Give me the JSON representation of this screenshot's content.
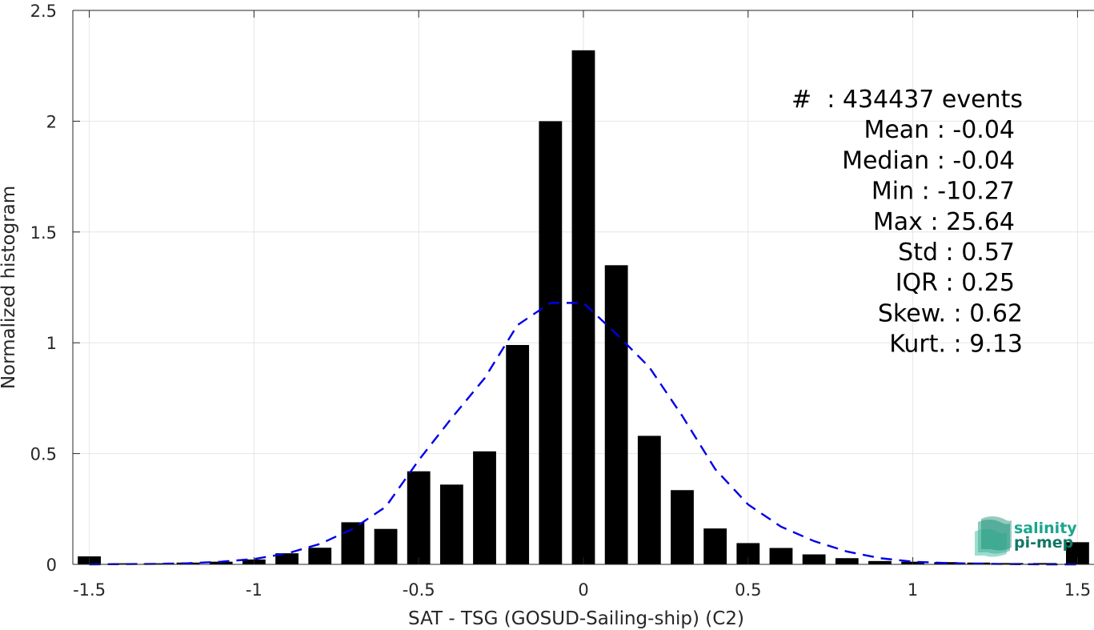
{
  "chart_data": {
    "type": "bar",
    "xlabel": "SAT - TSG (GOSUD-Sailing-ship) (C2)",
    "ylabel": "Normalized histogram",
    "xlim": [
      -1.55,
      1.55
    ],
    "ylim": [
      0,
      2.5
    ],
    "xticks": [
      -1.5,
      -1,
      -0.5,
      0,
      0.5,
      1,
      1.5
    ],
    "xtick_labels": [
      "-1.5",
      "-1",
      "-0.5",
      "0",
      "0.5",
      "1",
      "1.5"
    ],
    "yticks": [
      0,
      0.5,
      1,
      1.5,
      2,
      2.5
    ],
    "ytick_labels": [
      "0",
      "0.5",
      "1",
      "1.5",
      "2",
      "2.5"
    ],
    "grid": true,
    "bar_width": 0.07,
    "bars": [
      {
        "x": -1.5,
        "y": 0.036
      },
      {
        "x": -1.4,
        "y": 0.005
      },
      {
        "x": -1.3,
        "y": 0.005
      },
      {
        "x": -1.2,
        "y": 0.008
      },
      {
        "x": -1.1,
        "y": 0.012
      },
      {
        "x": -1.0,
        "y": 0.022
      },
      {
        "x": -0.9,
        "y": 0.05
      },
      {
        "x": -0.8,
        "y": 0.075
      },
      {
        "x": -0.7,
        "y": 0.19
      },
      {
        "x": -0.6,
        "y": 0.16
      },
      {
        "x": -0.5,
        "y": 0.42
      },
      {
        "x": -0.4,
        "y": 0.36
      },
      {
        "x": -0.3,
        "y": 0.51
      },
      {
        "x": -0.2,
        "y": 0.99
      },
      {
        "x": -0.1,
        "y": 2.0
      },
      {
        "x": 0.0,
        "y": 2.32
      },
      {
        "x": 0.1,
        "y": 1.35
      },
      {
        "x": 0.2,
        "y": 0.58
      },
      {
        "x": 0.3,
        "y": 0.335
      },
      {
        "x": 0.4,
        "y": 0.162
      },
      {
        "x": 0.5,
        "y": 0.096
      },
      {
        "x": 0.6,
        "y": 0.074
      },
      {
        "x": 0.7,
        "y": 0.045
      },
      {
        "x": 0.8,
        "y": 0.028
      },
      {
        "x": 0.9,
        "y": 0.015
      },
      {
        "x": 1.0,
        "y": 0.012
      },
      {
        "x": 1.1,
        "y": 0.01
      },
      {
        "x": 1.2,
        "y": 0.008
      },
      {
        "x": 1.3,
        "y": 0.006
      },
      {
        "x": 1.4,
        "y": 0.006
      },
      {
        "x": 1.5,
        "y": 0.1
      }
    ],
    "fit_curve": {
      "style": "dashed",
      "color": "#0000e6",
      "points": [
        [
          -1.5,
          0.0
        ],
        [
          -1.4,
          0.001
        ],
        [
          -1.3,
          0.002
        ],
        [
          -1.2,
          0.005
        ],
        [
          -1.1,
          0.012
        ],
        [
          -1.0,
          0.024
        ],
        [
          -0.9,
          0.049
        ],
        [
          -0.8,
          0.092
        ],
        [
          -0.7,
          0.16
        ],
        [
          -0.6,
          0.26
        ],
        [
          -0.5,
          0.47
        ],
        [
          -0.4,
          0.66
        ],
        [
          -0.3,
          0.84
        ],
        [
          -0.2,
          1.08
        ],
        [
          -0.1,
          1.18
        ],
        [
          0.0,
          1.18
        ],
        [
          0.1,
          1.04
        ],
        [
          0.2,
          0.89
        ],
        [
          0.3,
          0.67
        ],
        [
          0.4,
          0.43
        ],
        [
          0.5,
          0.27
        ],
        [
          0.6,
          0.17
        ],
        [
          0.7,
          0.105
        ],
        [
          0.8,
          0.058
        ],
        [
          0.9,
          0.028
        ],
        [
          1.0,
          0.012
        ],
        [
          1.1,
          0.006
        ],
        [
          1.2,
          0.003
        ],
        [
          1.3,
          0.001
        ],
        [
          1.4,
          0.0
        ],
        [
          1.5,
          0.0
        ]
      ]
    },
    "stats_lines": [
      "#  : 434437 events",
      "Mean : -0.04",
      "Median : -0.04",
      "Min : -10.27",
      "Max : 25.64",
      "Std : 0.57",
      "IQR : 0.25",
      "Skew. : 0.62",
      "Kurt. : 9.13"
    ],
    "colors": {
      "bars": "#000000",
      "fit": "#0000e6",
      "grid": "#e6e6e6",
      "axis": "#262626"
    }
  },
  "logo": {
    "line1": "salinity",
    "line2": "pi-mep",
    "color1": "#1aa68c",
    "color2": "#117864"
  }
}
